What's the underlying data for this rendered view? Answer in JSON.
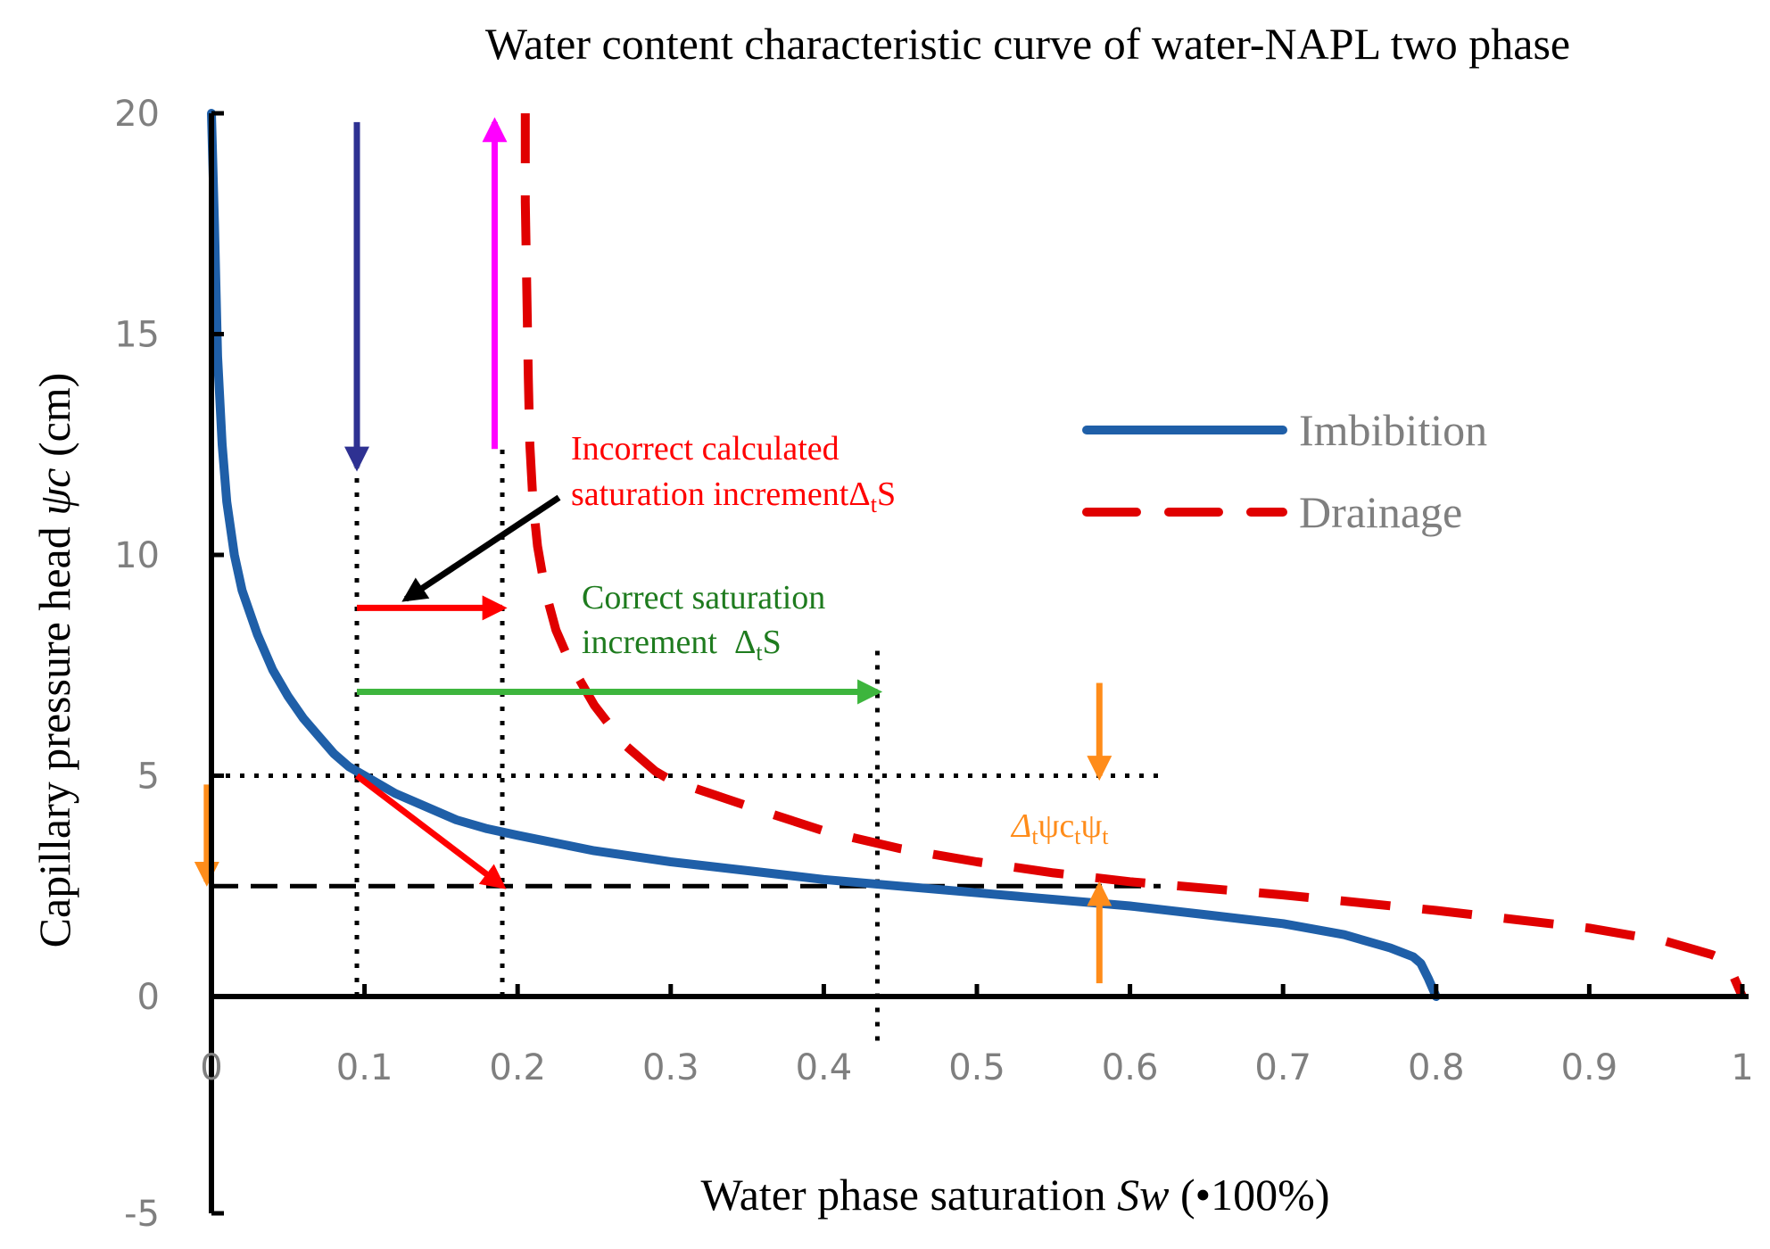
{
  "chart_data": {
    "type": "line",
    "title": "Water content characteristic curve of water-NAPL two phase",
    "xlabel": {
      "prefix": "Water phase saturation ",
      "symbol": "Sw",
      "suffix": " (•100%)"
    },
    "ylabel": {
      "prefix": "Capillary pressure head ",
      "symbol": "ψc",
      "suffix": " (cm)"
    },
    "xlim": [
      0,
      1
    ],
    "ylim": [
      -5,
      20
    ],
    "xticks": [
      "0",
      "0.1",
      "0.2",
      "0.3",
      "0.4",
      "0.5",
      "0.6",
      "0.7",
      "0.8",
      "0.9",
      "1"
    ],
    "yticks": [
      "20",
      "15",
      "10",
      "5",
      "0",
      "-5"
    ],
    "grid": false,
    "legend_position": "right",
    "series": [
      {
        "name": "Imbibition",
        "color": "#1F5FA8",
        "style": "solid",
        "points": [
          [
            0.0,
            20.0
          ],
          [
            0.002,
            17.5
          ],
          [
            0.004,
            14.5
          ],
          [
            0.007,
            12.5
          ],
          [
            0.01,
            11.2
          ],
          [
            0.015,
            10.0
          ],
          [
            0.02,
            9.2
          ],
          [
            0.03,
            8.2
          ],
          [
            0.04,
            7.4
          ],
          [
            0.05,
            6.8
          ],
          [
            0.06,
            6.3
          ],
          [
            0.07,
            5.9
          ],
          [
            0.08,
            5.5
          ],
          [
            0.09,
            5.2
          ],
          [
            0.1,
            5.0
          ],
          [
            0.12,
            4.6
          ],
          [
            0.14,
            4.3
          ],
          [
            0.16,
            4.0
          ],
          [
            0.18,
            3.8
          ],
          [
            0.2,
            3.65
          ],
          [
            0.25,
            3.3
          ],
          [
            0.3,
            3.05
          ],
          [
            0.35,
            2.85
          ],
          [
            0.4,
            2.65
          ],
          [
            0.45,
            2.5
          ],
          [
            0.5,
            2.35
          ],
          [
            0.55,
            2.2
          ],
          [
            0.6,
            2.05
          ],
          [
            0.65,
            1.85
          ],
          [
            0.7,
            1.65
          ],
          [
            0.74,
            1.4
          ],
          [
            0.77,
            1.1
          ],
          [
            0.785,
            0.9
          ],
          [
            0.79,
            0.75
          ],
          [
            0.795,
            0.4
          ],
          [
            0.8,
            0.0
          ]
        ]
      },
      {
        "name": "Drainage",
        "color": "#E00000",
        "style": "dashed",
        "points": [
          [
            0.205,
            20.0
          ],
          [
            0.205,
            18.0
          ],
          [
            0.206,
            16.0
          ],
          [
            0.207,
            14.0
          ],
          [
            0.208,
            12.5
          ],
          [
            0.21,
            11.2
          ],
          [
            0.213,
            10.2
          ],
          [
            0.218,
            9.2
          ],
          [
            0.225,
            8.3
          ],
          [
            0.235,
            7.5
          ],
          [
            0.25,
            6.6
          ],
          [
            0.27,
            5.7
          ],
          [
            0.29,
            5.1
          ],
          [
            0.3,
            4.9
          ],
          [
            0.33,
            4.55
          ],
          [
            0.36,
            4.2
          ],
          [
            0.4,
            3.75
          ],
          [
            0.45,
            3.35
          ],
          [
            0.5,
            3.05
          ],
          [
            0.55,
            2.8
          ],
          [
            0.6,
            2.6
          ],
          [
            0.7,
            2.3
          ],
          [
            0.8,
            1.95
          ],
          [
            0.9,
            1.55
          ],
          [
            0.95,
            1.25
          ],
          [
            0.98,
            0.95
          ],
          [
            0.99,
            0.8
          ],
          [
            0.995,
            0.4
          ],
          [
            1.0,
            0.0
          ]
        ]
      }
    ],
    "reference_lines": [
      {
        "orientation": "horizontal",
        "y": 5.0,
        "x_from": 0.0,
        "x_to": 0.62,
        "style": "dotted"
      },
      {
        "orientation": "horizontal",
        "y": 2.5,
        "x_from": 0.0,
        "x_to": 0.62,
        "style": "dashed"
      },
      {
        "orientation": "vertical",
        "x": 0.095,
        "y_from": 0.0,
        "y_to": 12.0,
        "style": "dotted"
      },
      {
        "orientation": "vertical",
        "x": 0.19,
        "y_from": 0.0,
        "y_to": 12.5,
        "style": "dotted"
      },
      {
        "orientation": "vertical",
        "x": 0.435,
        "y_from": -1.0,
        "y_to": 8.0,
        "style": "dotted"
      }
    ],
    "arrows": [
      {
        "name": "down-arrow-blue",
        "color": "#2E3192",
        "from": [
          0.095,
          19.8
        ],
        "to": [
          0.095,
          12.0
        ]
      },
      {
        "name": "up-arrow-magenta",
        "color": "#FF00FF",
        "from": [
          0.185,
          12.4
        ],
        "to": [
          0.185,
          19.8
        ]
      },
      {
        "name": "incorrect-increment-arrow",
        "color": "#FF0000",
        "from": [
          0.095,
          8.8
        ],
        "to": [
          0.19,
          8.8
        ]
      },
      {
        "name": "correct-increment-arrow",
        "color": "#3DB53D",
        "from": [
          0.095,
          6.9
        ],
        "to": [
          0.435,
          6.9
        ]
      },
      {
        "name": "diagonal-arrow-red",
        "color": "#FF0000",
        "from": [
          0.095,
          5.0
        ],
        "to": [
          0.19,
          2.5
        ]
      },
      {
        "name": "pointer-arrow-black",
        "color": "#000000",
        "from": [
          0.227,
          11.3
        ],
        "to": [
          0.127,
          9.0
        ]
      },
      {
        "name": "orange-down-arrow-left",
        "color": "#FF8C1A",
        "from": [
          -0.003,
          4.8
        ],
        "to": [
          -0.003,
          2.6
        ]
      },
      {
        "name": "orange-down-arrow-right",
        "color": "#FF8C1A",
        "from": [
          0.58,
          7.1
        ],
        "to": [
          0.58,
          5.0
        ]
      },
      {
        "name": "orange-up-arrow-right",
        "color": "#FF8C1A",
        "from": [
          0.58,
          0.3
        ],
        "to": [
          0.58,
          2.5
        ]
      }
    ],
    "annotations": {
      "incorrect_line1": "Incorrect calculated",
      "incorrect_line2": "saturation increment",
      "incorrect_delta": "Δ",
      "incorrect_sub": "t",
      "incorrect_s": "S",
      "correct_line1": "Correct saturation",
      "correct_line2": "increment  ",
      "correct_delta": "Δ",
      "correct_sub": "t",
      "correct_s": "S",
      "orange_delta": "Δ",
      "orange_sub1": "t",
      "orange_mid": "ψc",
      "orange_sub2": "t",
      "orange_psi": "ψ",
      "orange_sub3": "t"
    },
    "annotation_colors": {
      "incorrect": "#FF0000",
      "correct": "#1E7B1E",
      "orange": "#FF8C1A"
    }
  }
}
